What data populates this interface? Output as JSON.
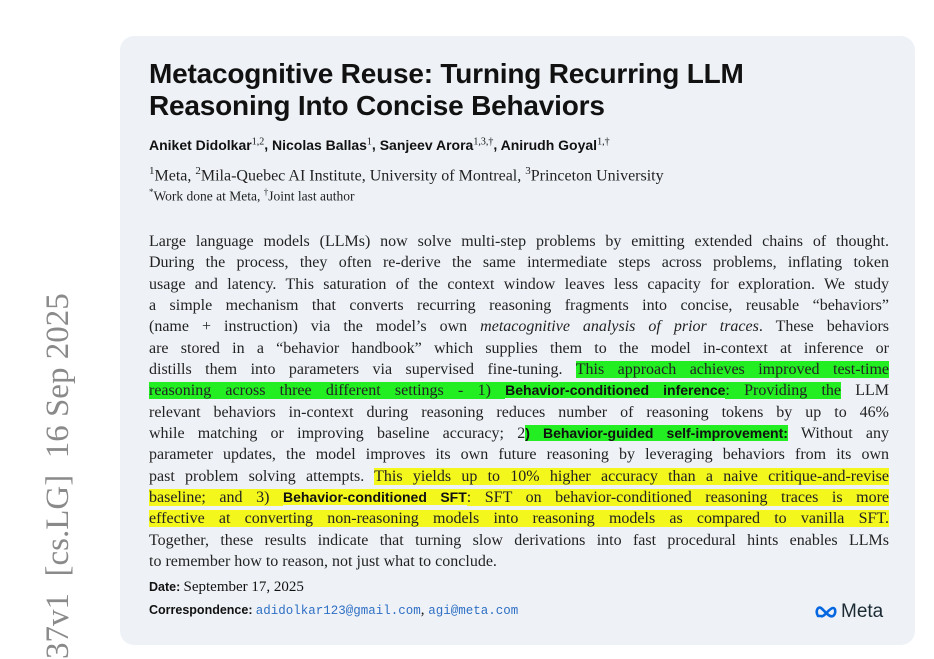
{
  "arxiv_stamp": "37v1  [cs.LG]  16 Sep 2025",
  "title": "Metacognitive Reuse: Turning Recurring LLM Reasoning Into Concise Behaviors",
  "authors": [
    {
      "name": "Aniket Didolkar",
      "sup": "1,2"
    },
    {
      "name": "Nicolas Ballas",
      "sup": "1"
    },
    {
      "name": "Sanjeev Arora",
      "sup": "1,3,†"
    },
    {
      "name": "Anirudh Goyal",
      "sup": "1,†"
    }
  ],
  "affiliations": [
    {
      "sup": "1",
      "name": "Meta, "
    },
    {
      "sup": "2",
      "name": "Mila-Quebec AI Institute, University of Montreal, "
    },
    {
      "sup": "3",
      "name": "Princeton University"
    }
  ],
  "notes": [
    {
      "sup": "*",
      "text": "Work done at Meta, "
    },
    {
      "sup": "†",
      "text": "Joint last author"
    }
  ],
  "abstract_lines": [
    [
      {
        "t": "Large language models (LLMs) now solve multi-step problems by emitting extended chains of thought.",
        "s": ""
      }
    ],
    [
      {
        "t": "During the process, they often re-derive the same intermediate steps across problems, inflating token",
        "s": ""
      }
    ],
    [
      {
        "t": "usage and latency. This saturation of the context window leaves less capacity for exploration. We study",
        "s": ""
      }
    ],
    [
      {
        "t": "a simple mechanism that converts recurring reasoning fragments into concise, reusable “behaviors”",
        "s": ""
      }
    ],
    [
      {
        "t": "(name + instruction) via the model’s own ",
        "s": ""
      },
      {
        "t": "metacognitive analysis of prior traces",
        "s": "italic"
      },
      {
        "t": ". These behaviors",
        "s": ""
      }
    ],
    [
      {
        "t": "are stored in a “behavior handbook” which supplies them to the model in-context at inference or",
        "s": ""
      }
    ],
    [
      {
        "t": "distills them into parameters via supervised fine-tuning. ",
        "s": ""
      },
      {
        "t": "This approach achieves improved test-time",
        "s": "green"
      }
    ],
    [
      {
        "t": "reasoning across three different settings - 1) ",
        "s": "green"
      },
      {
        "t": "Behavior-conditioned inference",
        "s": "green bold"
      },
      {
        "t": ":  Providing the",
        "s": "green"
      },
      {
        "t": " LLM",
        "s": ""
      }
    ],
    [
      {
        "t": "relevant behaviors in-context during reasoning reduces number of reasoning tokens by up to 46%",
        "s": ""
      }
    ],
    [
      {
        "t": "while matching or improving baseline accuracy; 2",
        "s": ""
      },
      {
        "t": ") Behavior-guided self-improvement:",
        "s": "green bold"
      },
      {
        "t": " Without any",
        "s": ""
      }
    ],
    [
      {
        "t": "parameter updates, the model improves its own future reasoning by leveraging behaviors from its own",
        "s": ""
      }
    ],
    [
      {
        "t": "past problem solving attempts. ",
        "s": ""
      },
      {
        "t": "This yields up to 10% higher accuracy than a naive critique-and-revise",
        "s": "yellow"
      }
    ],
    [
      {
        "t": "baseline; and 3) ",
        "s": "yellow"
      },
      {
        "t": "Behavior-conditioned SFT",
        "s": "yellow bold"
      },
      {
        "t": ": SFT on behavior-conditioned reasoning traces is more",
        "s": "yellow"
      }
    ],
    [
      {
        "t": "effective at converting non-reasoning models into reasoning models as compared to vanilla SFT.",
        "s": "yellow"
      }
    ],
    [
      {
        "t": "Together, these results indicate that turning slow derivations into fast procedural hints enables LLMs",
        "s": ""
      }
    ],
    [
      {
        "t": "to remember how to reason, not just what to conclude.",
        "s": ""
      }
    ]
  ],
  "highlight_colors": {
    "green": "#22ee22",
    "yellow": "#f4f71c"
  },
  "date": {
    "label": "Date:",
    "value": "September 17, 2025"
  },
  "correspondence": {
    "label": "Correspondence:",
    "emails": [
      "adidolkar123@gmail.com",
      "agi@meta.com"
    ],
    "separator": ", "
  },
  "logo": {
    "text": "Meta",
    "icon": "meta-infinity-icon",
    "color": "#0668E1"
  }
}
